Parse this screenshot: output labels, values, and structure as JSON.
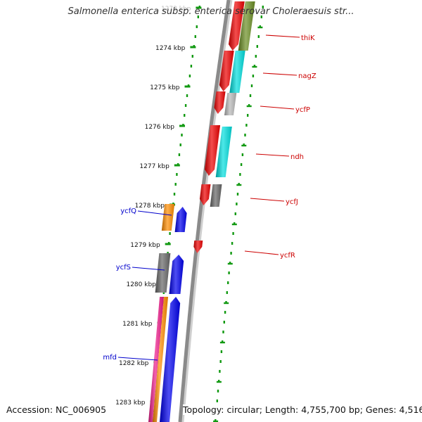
{
  "title": "Salmonella enterica subsp. enterica serovar Choleraesuis str...",
  "footer": {
    "accession": "Accession: NC_006905",
    "summary": "Topology: circular; Length: 4,755,700 bp; Genes: 4,516"
  },
  "ruler": [
    {
      "label": "1273 kbp",
      "faded": true
    },
    {
      "label": "1274 kbp"
    },
    {
      "label": "1275 kbp"
    },
    {
      "label": "1276 kbp"
    },
    {
      "label": "1277 kbp"
    },
    {
      "label": "1278 kbp"
    },
    {
      "label": "1279 kbp"
    },
    {
      "label": "1280 kbp"
    },
    {
      "label": "1281 kbp"
    },
    {
      "label": "1282 kbp"
    },
    {
      "label": "1283 kbp"
    }
  ],
  "genes": {
    "reverse": [
      {
        "name": "thiK"
      },
      {
        "name": "nagZ"
      },
      {
        "name": "ycfP"
      },
      {
        "name": "ndh"
      },
      {
        "name": "ycfJ"
      },
      {
        "name": "ycfR"
      }
    ],
    "forward": [
      {
        "name": "ycfQ"
      },
      {
        "name": "ycfS"
      },
      {
        "name": "mfd"
      }
    ]
  },
  "colors": {
    "reverse_gene": "#ee0000",
    "forward_gene": "#0000ee",
    "reverse_label": "#cc0000",
    "forward_label": "#0000cc",
    "tick": "#119911",
    "backbone": "#8a8a8a",
    "olive": "#6b8e23",
    "cyan": "#00dede",
    "gray": "#b8b8b8",
    "darkgray": "#666666",
    "orange": "#ff8c00",
    "magenta": "#ee1a8a"
  }
}
